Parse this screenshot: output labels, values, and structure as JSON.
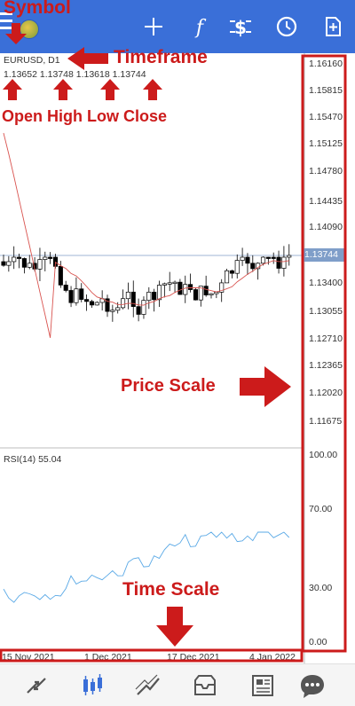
{
  "header": {
    "icons": [
      "menu-icon",
      "crosshair-icon",
      "indicators-icon",
      "trade-icon",
      "history-icon",
      "add-icon"
    ],
    "accent_color": "#3a6fd8"
  },
  "chart": {
    "symbol_line": "EURUSD, D1",
    "ohlc_line": "1.13652 1.13748 1.13618 1.13744",
    "current_price": "1.13744",
    "price_scale": [
      "1.16160",
      "1.15815",
      "1.15470",
      "1.15125",
      "1.14780",
      "1.14435",
      "1.14090",
      "1.13400",
      "1.13055",
      "1.12710",
      "1.12365",
      "1.12020",
      "1.11675"
    ],
    "rsi_label": "RSI(14) 55.04",
    "rsi_levels": [
      "100.00",
      "70.00",
      "30.00",
      "0.00"
    ],
    "time_scale": [
      "15 Nov 2021",
      "1 Dec 2021",
      "17 Dec 2021",
      "4 Jan 2022"
    ],
    "colors": {
      "bull": "#ffffff",
      "bear": "#000000",
      "ma": "#d9534f",
      "rsi": "#5aa9e6",
      "annotation": "#cc1b1b"
    }
  },
  "annotations": {
    "symbol": "Symbol",
    "timeframe": "Timeframe",
    "ohlc": "Open High Low Close",
    "price_scale": "Price Scale",
    "time_scale": "Time Scale"
  },
  "bottom_nav": {
    "icons": [
      "quotes-icon",
      "chart-icon",
      "trade-icon",
      "history-icon",
      "news-icon",
      "chat-icon"
    ],
    "active": "chart-icon"
  }
}
